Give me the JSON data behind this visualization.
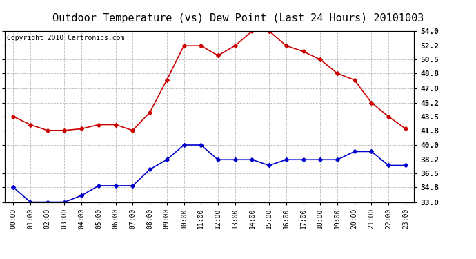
{
  "title": "Outdoor Temperature (vs) Dew Point (Last 24 Hours) 20101003",
  "copyright_text": "Copyright 2010 Cartronics.com",
  "hours": [
    "00:00",
    "01:00",
    "02:00",
    "03:00",
    "04:00",
    "05:00",
    "06:00",
    "07:00",
    "08:00",
    "09:00",
    "10:00",
    "11:00",
    "12:00",
    "13:00",
    "14:00",
    "15:00",
    "16:00",
    "17:00",
    "18:00",
    "19:00",
    "20:00",
    "21:00",
    "22:00",
    "23:00"
  ],
  "temp": [
    43.5,
    42.5,
    41.8,
    41.8,
    42.0,
    42.5,
    42.5,
    41.8,
    44.0,
    48.0,
    52.2,
    52.2,
    51.0,
    52.2,
    54.0,
    54.0,
    52.2,
    51.5,
    50.5,
    48.8,
    48.0,
    45.2,
    43.5,
    42.0
  ],
  "dewpoint": [
    34.8,
    33.0,
    33.0,
    33.0,
    33.8,
    35.0,
    35.0,
    35.0,
    37.0,
    38.2,
    40.0,
    40.0,
    38.2,
    38.2,
    38.2,
    37.5,
    38.2,
    38.2,
    38.2,
    38.2,
    39.2,
    39.2,
    37.5,
    37.5
  ],
  "temp_color": "#cc0000",
  "dewpoint_color": "#0000cc",
  "marker": "D",
  "marker_size": 3,
  "line_width": 1.2,
  "ylim": [
    33.0,
    54.0
  ],
  "yticks": [
    33.0,
    34.8,
    36.5,
    38.2,
    40.0,
    41.8,
    43.5,
    45.2,
    47.0,
    48.8,
    50.5,
    52.2,
    54.0
  ],
  "background_color": "#ffffff",
  "grid_color": "#aaaaaa",
  "title_fontsize": 11,
  "copyright_fontsize": 7
}
